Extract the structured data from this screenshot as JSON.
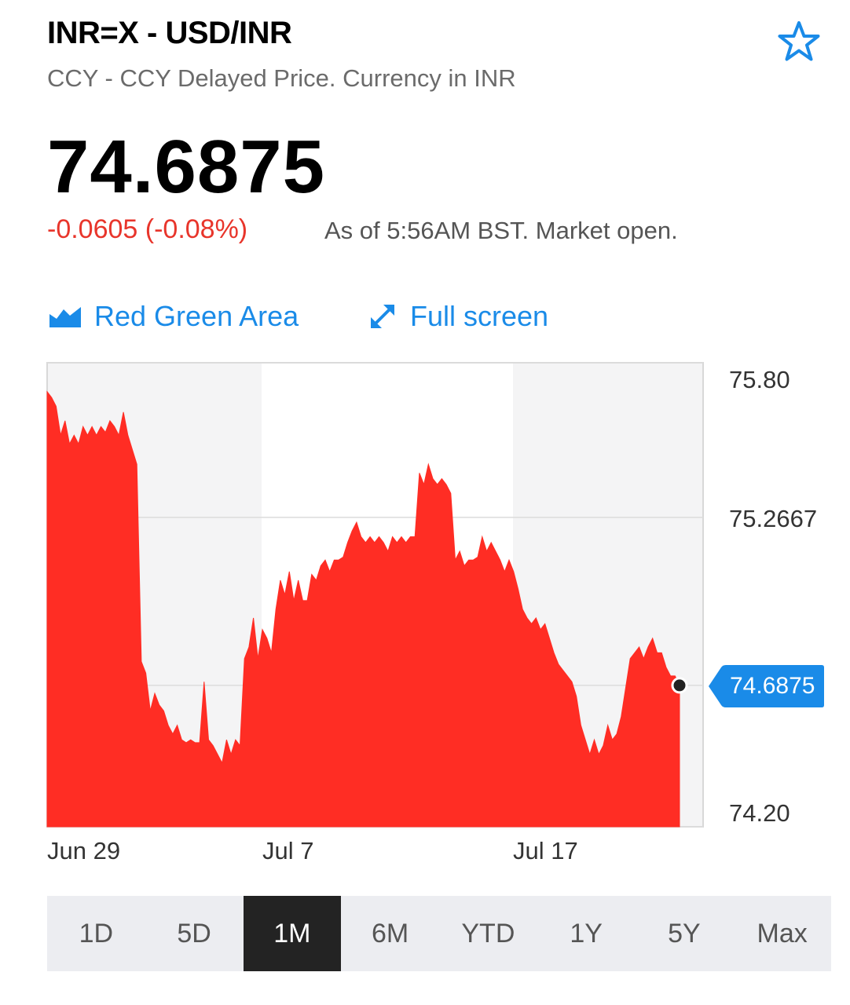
{
  "header": {
    "title": "INR=X - USD/INR",
    "subtitle": "CCY - CCY Delayed Price. Currency in INR",
    "price": "74.6875",
    "change": "-0.0605 (-0.08%)",
    "as_of": "As of 5:56AM BST. Market open.",
    "watchlist_icon": "star-outline-icon"
  },
  "actions": {
    "chart_type_label": "Red Green Area",
    "chart_type_icon": "area-chart-icon",
    "fullscreen_label": "Full screen",
    "fullscreen_icon": "expand-arrows-icon"
  },
  "chart_data": {
    "type": "area",
    "title": "",
    "xlabel": "",
    "ylabel": "",
    "x_ticks": [
      "Jun 29",
      "Jul 7",
      "Jul 17"
    ],
    "y_ticks": [
      "75.80",
      "75.2667",
      "74.6875",
      "74.20"
    ],
    "ylim": [
      74.2,
      75.8
    ],
    "current_value": "74.6875",
    "grid": true,
    "fill_color": "#ff2d24",
    "series": [
      {
        "values": [
          75.7,
          75.68,
          75.65,
          75.55,
          75.6,
          75.52,
          75.55,
          75.52,
          75.58,
          75.55,
          75.58,
          75.55,
          75.58,
          75.56,
          75.6,
          75.58,
          75.55,
          75.63,
          75.55,
          75.5,
          75.45,
          74.77,
          74.73,
          74.6,
          74.66,
          74.62,
          74.6,
          74.55,
          74.52,
          74.55,
          74.5,
          74.49,
          74.5,
          74.49,
          74.49,
          74.7,
          74.5,
          74.48,
          74.45,
          74.42,
          74.5,
          74.45,
          74.5,
          74.48,
          74.78,
          74.82,
          74.92,
          74.78,
          74.88,
          74.85,
          74.8,
          74.95,
          75.05,
          75.0,
          75.08,
          74.98,
          75.05,
          74.98,
          74.98,
          75.07,
          75.05,
          75.1,
          75.12,
          75.08,
          75.12,
          75.12,
          75.13,
          75.18,
          75.22,
          75.25,
          75.2,
          75.18,
          75.2,
          75.18,
          75.2,
          75.18,
          75.15,
          75.2,
          75.18,
          75.2,
          75.18,
          75.2,
          75.2,
          75.42,
          75.38,
          75.45,
          75.4,
          75.38,
          75.4,
          75.38,
          75.35,
          75.12,
          75.15,
          75.1,
          75.12,
          75.12,
          75.13,
          75.2,
          75.15,
          75.18,
          75.15,
          75.12,
          75.08,
          75.12,
          75.08,
          75.02,
          74.95,
          74.92,
          74.9,
          74.92,
          74.88,
          74.9,
          74.85,
          74.8,
          74.76,
          74.74,
          74.72,
          74.7,
          74.65,
          74.55,
          74.5,
          74.45,
          74.5,
          74.45,
          74.48,
          74.55,
          74.5,
          74.52,
          74.58,
          74.68,
          74.78,
          74.8,
          74.82,
          74.78,
          74.82,
          74.85,
          74.8,
          74.8,
          74.75,
          74.72,
          74.72,
          74.6875
        ]
      }
    ]
  },
  "current_price_tag": "74.6875",
  "ranges": [
    "1D",
    "5D",
    "1M",
    "6M",
    "YTD",
    "1Y",
    "5Y",
    "Max"
  ],
  "active_range": "1M"
}
